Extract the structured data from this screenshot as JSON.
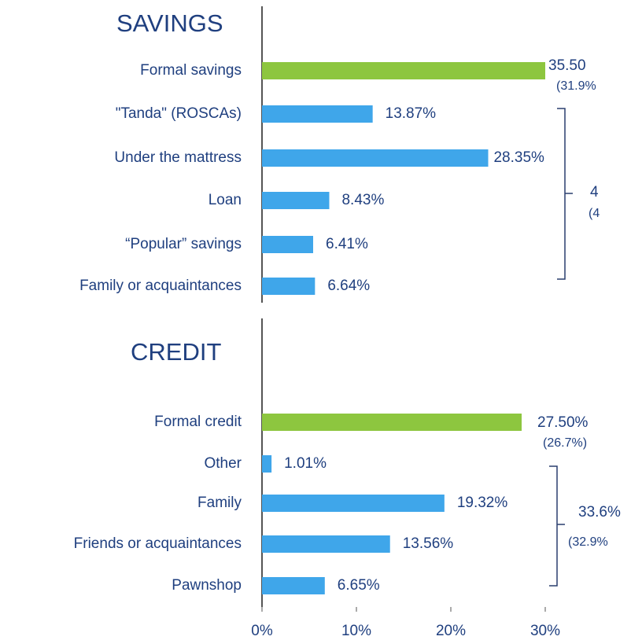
{
  "chart_data": [
    {
      "type": "bar",
      "orientation": "horizontal",
      "title": "SAVINGS",
      "categories": [
        "Formal savings",
        "\"Tanda\" (ROSCAs)",
        "Under the mattress",
        "Loan",
        "“Popular” savings",
        "Family or acquaintances"
      ],
      "values": [
        35.5,
        13.87,
        28.35,
        8.43,
        6.41,
        6.64
      ],
      "value_labels": [
        "35.50",
        "13.87%",
        "28.35%",
        "8.43%",
        "6.41%",
        "6.64%"
      ],
      "colors": [
        "#8dc63f",
        "#3fa6ea",
        "#3fa6ea",
        "#3fa6ea",
        "#3fa6ea",
        "#3fa6ea"
      ],
      "xlim": [
        0,
        35.5
      ],
      "annotations": [
        "(31.9%",
        "4",
        "(4"
      ]
    },
    {
      "type": "bar",
      "orientation": "horizontal",
      "title": "CREDIT",
      "categories": [
        "Formal credit",
        "Other",
        "Family",
        "Friends or acquaintances",
        "Pawnshop"
      ],
      "values": [
        27.5,
        1.01,
        19.32,
        13.56,
        6.65
      ],
      "value_labels": [
        "27.50%",
        "1.01%",
        "19.32%",
        "13.56%",
        "6.65%"
      ],
      "colors": [
        "#8dc63f",
        "#3fa6ea",
        "#3fa6ea",
        "#3fa6ea",
        "#3fa6ea"
      ],
      "xlim": [
        0,
        30
      ],
      "xticks": [
        {
          "value": 0,
          "label": "0%"
        },
        {
          "value": 10,
          "label": "10%"
        },
        {
          "value": 20,
          "label": "20%"
        },
        {
          "value": 30,
          "label": "30%"
        }
      ],
      "annotations": [
        "(26.7%)",
        "33.6%",
        "(32.9%"
      ]
    }
  ]
}
